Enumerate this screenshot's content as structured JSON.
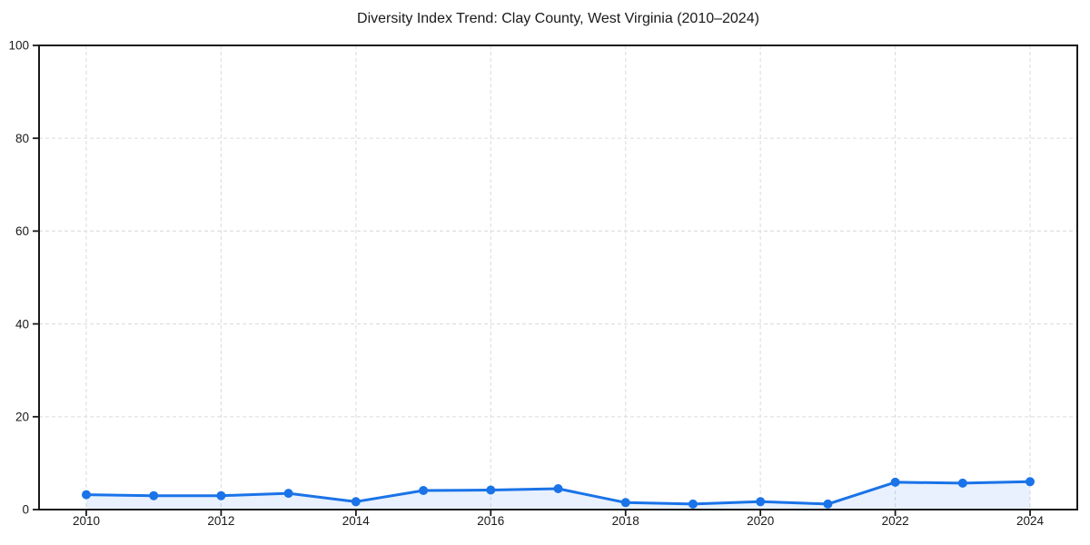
{
  "chart_data": {
    "type": "line",
    "title": "Diversity Index Trend: Clay County, West Virginia (2010–2024)",
    "x": [
      2010,
      2011,
      2012,
      2013,
      2014,
      2015,
      2016,
      2017,
      2018,
      2019,
      2020,
      2021,
      2022,
      2023,
      2024
    ],
    "series": [
      {
        "name": "Diversity Index",
        "values": [
          3.2,
          3.0,
          3.0,
          3.5,
          1.7,
          4.1,
          4.2,
          4.5,
          1.5,
          1.2,
          1.7,
          1.2,
          5.9,
          5.7,
          6.0
        ]
      }
    ],
    "xlabel": "",
    "ylabel": "",
    "xlim": [
      2009.3,
      2024.7
    ],
    "ylim": [
      0,
      100
    ],
    "xticks": [
      2010,
      2012,
      2014,
      2016,
      2018,
      2020,
      2022,
      2024
    ],
    "yticks": [
      0,
      20,
      40,
      60,
      80,
      100
    ],
    "grid": {
      "visible": true,
      "style": "dashed",
      "color": "#e0e0e0"
    },
    "legend": {
      "visible": false
    },
    "style": {
      "line_color": "#1a73e8",
      "line_width": 3,
      "marker": "circle",
      "marker_radius": 5,
      "marker_color": "#1a73e8",
      "area_fill": true,
      "area_color": "rgba(26,115,232,0.10)",
      "frame_color": "#1a1a1a",
      "tick_color": "#1a1a1a",
      "label_color": "#1a1a1a",
      "background": "#ffffff"
    }
  }
}
